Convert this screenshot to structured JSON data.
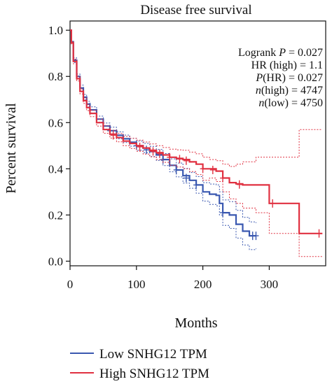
{
  "chart_data": {
    "type": "line",
    "title": "Disease free survival",
    "xlabel": "Months",
    "ylabel": "Percent survival",
    "xlim": [
      0,
      385
    ],
    "ylim": [
      -0.02,
      1.04
    ],
    "x_ticks": [
      "0",
      "100",
      "200",
      "300"
    ],
    "x_tick_values": [
      0,
      100,
      200,
      300
    ],
    "y_ticks": [
      "0.0",
      "0.2",
      "0.4",
      "0.6",
      "0.8",
      "1.0"
    ],
    "y_tick_values": [
      0,
      0.2,
      0.4,
      0.6,
      0.8,
      1.0
    ],
    "grid": false,
    "legend_position": "bottom-left",
    "annotations": [
      {
        "italic": "",
        "text": "Logrank ",
        "ital": "P",
        "rest": " = 0.027"
      },
      {
        "italic": "",
        "text": "HR (high) = 1.1",
        "ital": "",
        "rest": ""
      },
      {
        "italic": "",
        "text": "",
        "ital": "P",
        "rest": "(HR) = 0.027"
      },
      {
        "italic": "",
        "text": "",
        "ital": "n",
        "rest": "(high) = 4747"
      },
      {
        "italic": "",
        "text": "",
        "ital": "n",
        "rest": "(low) = 4750"
      }
    ],
    "series": [
      {
        "name": "Low SNHG12 TPM",
        "color": "#3a58b0",
        "x": [
          0,
          2,
          5,
          10,
          15,
          20,
          25,
          30,
          40,
          50,
          60,
          70,
          80,
          90,
          100,
          110,
          120,
          130,
          140,
          150,
          160,
          170,
          180,
          190,
          200,
          210,
          220,
          225,
          230,
          240,
          250,
          260,
          270,
          280
        ],
        "y": [
          1.0,
          0.95,
          0.87,
          0.8,
          0.75,
          0.71,
          0.68,
          0.655,
          0.615,
          0.585,
          0.565,
          0.545,
          0.53,
          0.515,
          0.5,
          0.49,
          0.475,
          0.46,
          0.44,
          0.415,
          0.395,
          0.37,
          0.35,
          0.33,
          0.3,
          0.29,
          0.285,
          0.25,
          0.21,
          0.2,
          0.16,
          0.13,
          0.11,
          0.11
        ],
        "upper": [
          1.0,
          0.955,
          0.88,
          0.81,
          0.762,
          0.722,
          0.692,
          0.668,
          0.628,
          0.598,
          0.58,
          0.56,
          0.546,
          0.532,
          0.52,
          0.51,
          0.497,
          0.484,
          0.466,
          0.443,
          0.425,
          0.402,
          0.384,
          0.366,
          0.34,
          0.334,
          0.33,
          0.3,
          0.265,
          0.258,
          0.22,
          0.19,
          0.17,
          0.165
        ],
        "lower": [
          1.0,
          0.945,
          0.86,
          0.79,
          0.738,
          0.698,
          0.668,
          0.642,
          0.602,
          0.572,
          0.55,
          0.53,
          0.514,
          0.498,
          0.48,
          0.47,
          0.453,
          0.436,
          0.414,
          0.387,
          0.365,
          0.338,
          0.316,
          0.294,
          0.26,
          0.246,
          0.24,
          0.2,
          0.155,
          0.142,
          0.1,
          0.07,
          0.05,
          0.055
        ],
        "censors": [
          [
            60,
            0.565
          ],
          [
            100,
            0.5
          ],
          [
            115,
            0.482
          ],
          [
            140,
            0.44
          ],
          [
            160,
            0.395
          ],
          [
            175,
            0.36
          ],
          [
            190,
            0.33
          ],
          [
            230,
            0.21
          ],
          [
            275,
            0.11
          ],
          [
            280,
            0.11
          ]
        ]
      },
      {
        "name": "High SNHG12 TPM",
        "color": "#e03040",
        "x": [
          0,
          2,
          5,
          10,
          15,
          20,
          25,
          30,
          40,
          50,
          60,
          70,
          80,
          90,
          100,
          110,
          120,
          130,
          140,
          150,
          160,
          170,
          180,
          190,
          200,
          210,
          220,
          230,
          240,
          250,
          260,
          270,
          280,
          300,
          345,
          380
        ],
        "y": [
          1.0,
          0.945,
          0.865,
          0.79,
          0.735,
          0.695,
          0.665,
          0.64,
          0.6,
          0.57,
          0.55,
          0.535,
          0.52,
          0.51,
          0.5,
          0.49,
          0.48,
          0.47,
          0.46,
          0.45,
          0.445,
          0.44,
          0.43,
          0.42,
          0.4,
          0.4,
          0.39,
          0.36,
          0.34,
          0.335,
          0.33,
          0.33,
          0.33,
          0.25,
          0.12,
          0.12
        ],
        "upper": [
          1.0,
          0.95,
          0.875,
          0.8,
          0.746,
          0.707,
          0.678,
          0.654,
          0.615,
          0.586,
          0.567,
          0.553,
          0.54,
          0.532,
          0.524,
          0.516,
          0.508,
          0.5,
          0.492,
          0.485,
          0.482,
          0.48,
          0.472,
          0.465,
          0.45,
          0.44,
          0.435,
          0.42,
          0.41,
          0.42,
          0.43,
          0.43,
          0.45,
          0.45,
          0.57,
          0.57
        ],
        "lower": [
          1.0,
          0.94,
          0.855,
          0.78,
          0.724,
          0.683,
          0.652,
          0.626,
          0.585,
          0.554,
          0.533,
          0.517,
          0.5,
          0.488,
          0.476,
          0.464,
          0.452,
          0.44,
          0.428,
          0.415,
          0.408,
          0.4,
          0.388,
          0.375,
          0.35,
          0.36,
          0.345,
          0.3,
          0.27,
          0.25,
          0.23,
          0.23,
          0.21,
          0.12,
          0.02,
          0.02
        ],
        "censors": [
          [
            65,
            0.545
          ],
          [
            105,
            0.495
          ],
          [
            125,
            0.475
          ],
          [
            135,
            0.465
          ],
          [
            150,
            0.45
          ],
          [
            165,
            0.442
          ],
          [
            175,
            0.435
          ],
          [
            200,
            0.4
          ],
          [
            215,
            0.395
          ],
          [
            230,
            0.36
          ],
          [
            255,
            0.332
          ],
          [
            305,
            0.25
          ],
          [
            375,
            0.12
          ]
        ]
      }
    ]
  }
}
